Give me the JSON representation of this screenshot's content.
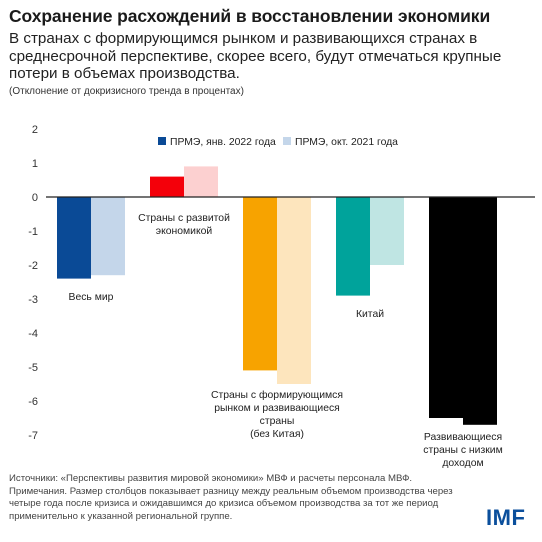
{
  "title": "Сохранение расхождений в восстановлении экономики",
  "subtitle": "В странах с формирующимся рынком и развивающихся странах в среднесрочной перспективе, скорее всего, будут отмечаться крупные потери в объемах производства.",
  "units": "(Отклонение от докризисного тренда в процентах)",
  "sources": "Источники: «Перспективы развития мировой экономики» МВФ и расчеты персонала МВФ.",
  "notes": "Примечания. Размер столбцов показывает разницу между реальным объемом производства через четыре года после кризиса и ожидавшимся до кризиса объемом производства за тот же период применительно к указанной региональной группе.",
  "logo": "IMF",
  "colors": {
    "jan2022": [
      "#0a4a96",
      "#f4000a",
      "#f7a300",
      "#00a39b"
    ],
    "oct2021": [
      "#c4d6ea",
      "#fcd0d0",
      "#fde5bd",
      "#bfe5e3"
    ],
    "legend_jan": "#0a4a96",
    "legend_oct": "#c4d6ea"
  },
  "chart_data": {
    "type": "bar",
    "ylim": [
      -7,
      2
    ],
    "yticks": [
      "2",
      "1",
      "0",
      "-1",
      "-2",
      "-3",
      "-4",
      "-5",
      "-6",
      "-7"
    ],
    "categories": [
      {
        "lines": [
          "Весь мир"
        ]
      },
      {
        "lines": [
          "Страны с развитой",
          "экономикой"
        ]
      },
      {
        "lines": [
          "Страны с формирующимся",
          "рынком и развивающиеся",
          "страны",
          "(без Китая)"
        ]
      },
      {
        "lines": [
          "Китай"
        ]
      },
      {
        "lines": [
          "Развивающиеся",
          "страны с низким",
          "доходом"
        ]
      }
    ],
    "series": [
      {
        "name": "ПРМЭ, янв. 2022 года",
        "values": [
          -2.4,
          0.6,
          -5.1,
          -2.9,
          -6.5
        ]
      },
      {
        "name": "ПРМЭ, окт. 2021 года",
        "values": [
          -2.3,
          0.9,
          -5.5,
          -2.0,
          -6.7
        ]
      }
    ],
    "legend_position": "top"
  }
}
